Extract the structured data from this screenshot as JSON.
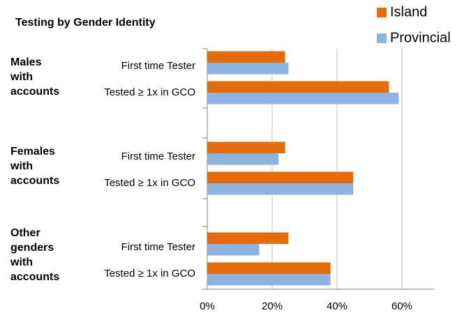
{
  "chart_data": {
    "type": "bar",
    "orientation": "horizontal",
    "title": "Testing by Gender Identity",
    "groups": [
      [
        "Males",
        "with",
        "accounts"
      ],
      [
        "Females",
        "with",
        "accounts"
      ],
      [
        "Other",
        "genders",
        "with",
        "accounts"
      ]
    ],
    "categories": [
      "First time Tester",
      "Tested ≥ 1x in GCO",
      "First time Tester",
      "Tested ≥ 1x in GCO",
      "First time Tester",
      "Tested ≥ 1x in GCO"
    ],
    "series": [
      {
        "name": "Island",
        "color": "#e46c0a",
        "values": [
          24,
          56,
          24,
          45,
          25,
          38
        ]
      },
      {
        "name": "Provincial",
        "color": "#8db3e2",
        "values": [
          25,
          59,
          22,
          45,
          16,
          38
        ]
      }
    ],
    "xlim": [
      0,
      70
    ],
    "xticks": [
      {
        "value": 0,
        "label": "0%"
      },
      {
        "value": 20,
        "label": "20%"
      },
      {
        "value": 40,
        "label": "40%"
      },
      {
        "value": 60,
        "label": "60%"
      }
    ],
    "grid": true,
    "legend": "top-right"
  }
}
